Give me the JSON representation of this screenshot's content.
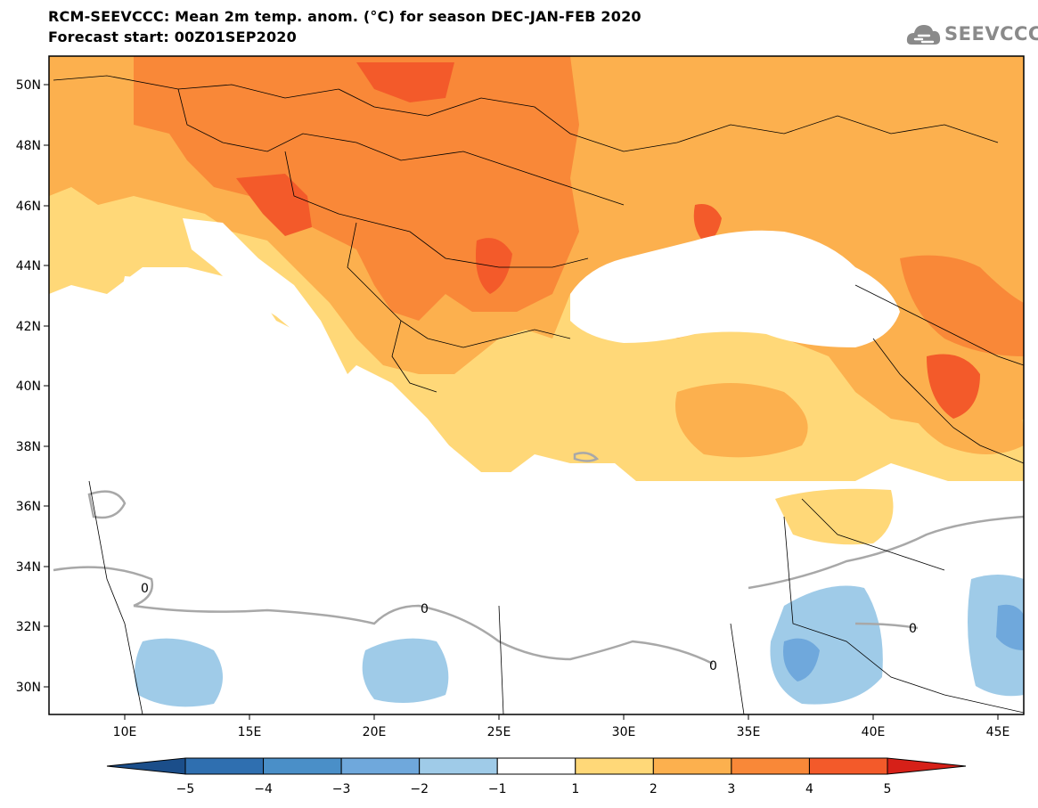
{
  "title_line1": "RCM-SEEVCCC: Mean 2m temp. anom. (°C) for season DEC-JAN-FEB 2020",
  "title_line2": "Forecast start: 00Z01SEP2020",
  "logo_text": "SEEVCCC",
  "map": {
    "variable": "Mean 2m temperature anomaly",
    "unit": "°C",
    "lon_range": [
      7,
      46
    ],
    "lat_range": [
      29,
      51
    ],
    "lon_ticks": [
      "10E",
      "15E",
      "20E",
      "25E",
      "30E",
      "35E",
      "40E",
      "45E"
    ],
    "lat_ticks": [
      "50N",
      "48N",
      "46N",
      "44N",
      "42N",
      "40N",
      "38N",
      "36N",
      "34N",
      "32N",
      "30N"
    ],
    "zero_contour_label": "0"
  },
  "colorbar": {
    "labels": [
      "−5",
      "−4",
      "−3",
      "−2",
      "−1",
      "1",
      "2",
      "3",
      "4",
      "5"
    ],
    "colors": [
      "#1b4e8a",
      "#2f6fb0",
      "#4a8fc8",
      "#6fa8dc",
      "#9fcbe8",
      "#ffffff",
      "#ffd878",
      "#fcb04e",
      "#f98838",
      "#f35a2a",
      "#d62018"
    ]
  }
}
